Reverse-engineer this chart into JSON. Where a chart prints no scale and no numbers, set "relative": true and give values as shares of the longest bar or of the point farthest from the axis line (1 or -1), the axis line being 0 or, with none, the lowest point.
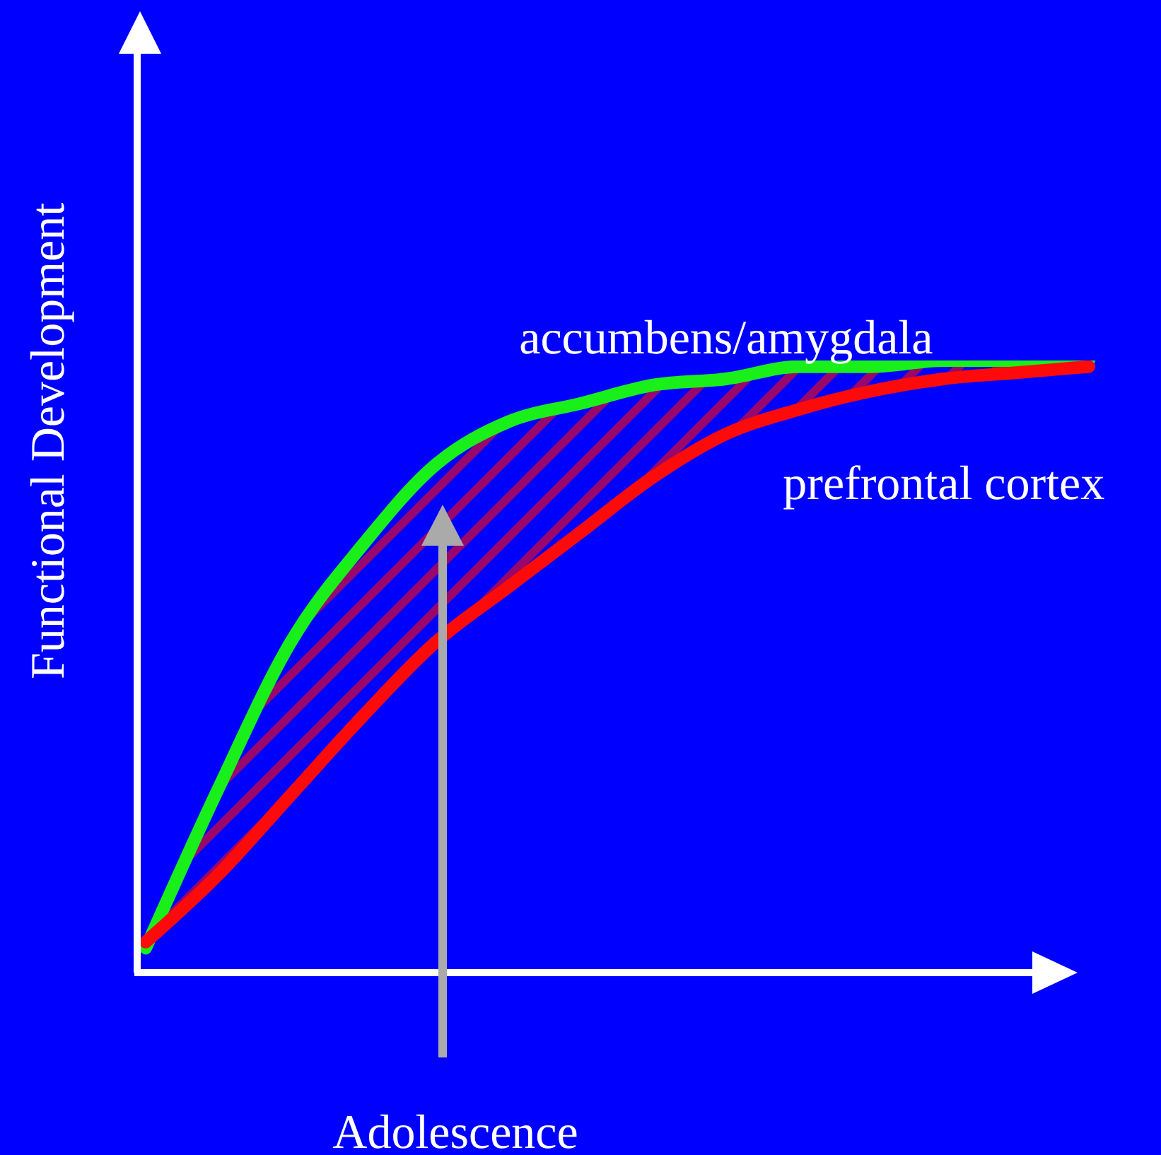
{
  "chart_data": {
    "type": "line",
    "relative": true,
    "ylabel": "Functional Development",
    "categories": [
      null,
      null,
      null,
      null,
      null,
      null,
      null,
      null,
      null,
      null,
      null,
      null,
      null,
      null
    ],
    "series": [
      {
        "name": "accumbens/amygdala",
        "color": "#19f019",
        "values": [
          0.04,
          0.3,
          0.54,
          0.7,
          0.83,
          0.9,
          0.93,
          0.96,
          0.97,
          0.99,
          0.99,
          1,
          1,
          1
        ]
      },
      {
        "name": "prefrontal cortex",
        "color": "#ff0a0a",
        "values": [
          0.05,
          0.16,
          0.29,
          0.42,
          0.54,
          0.63,
          0.72,
          0.81,
          0.88,
          0.92,
          0.95,
          0.97,
          0.98,
          0.99
        ],
        "lower": [
          0.05,
          0.16,
          0.29,
          0.42,
          0.54,
          0.63,
          0.72,
          0.81,
          0.88,
          0.92,
          0.95,
          0.97,
          0.98,
          0.99
        ],
        "upper": [
          0.04,
          0.3,
          0.54,
          0.7,
          0.83,
          0.9,
          0.93,
          0.96,
          0.97,
          0.99,
          0.99,
          1,
          1,
          1
        ]
      }
    ],
    "annotations": [
      "Adolescence"
    ],
    "grid": false,
    "legend": false,
    "marker": "none",
    "line_style": "solid"
  }
}
